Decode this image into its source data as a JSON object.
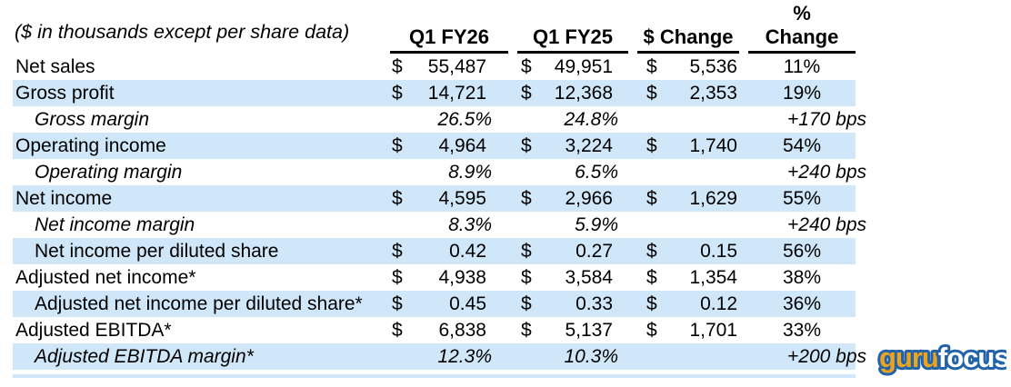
{
  "chart_data": {
    "type": "table",
    "note": "($ in thousands except per share data)",
    "columns": {
      "fy26": "Q1 FY26",
      "fy25": "Q1 FY25",
      "dchange": "$ Change",
      "pchange_line1": "%",
      "pchange_line2": "Change"
    },
    "rows": [
      {
        "label": "Net sales",
        "fy26_cur": "$",
        "fy26": "55,487",
        "fy25_cur": "$",
        "fy25": "49,951",
        "chg_cur": "$",
        "chg": "5,536",
        "pct": "11%"
      },
      {
        "label": "Gross profit",
        "fy26_cur": "$",
        "fy26": "14,721",
        "fy25_cur": "$",
        "fy25": "12,368",
        "chg_cur": "$",
        "chg": "2,353",
        "pct": "19%"
      },
      {
        "label": "Gross margin",
        "fy26": "26.5%",
        "fy25": "24.8%",
        "pct": "+170 bps"
      },
      {
        "label": "Operating income",
        "fy26_cur": "$",
        "fy26": "4,964",
        "fy25_cur": "$",
        "fy25": "3,224",
        "chg_cur": "$",
        "chg": "1,740",
        "pct": "54%"
      },
      {
        "label": "Operating margin",
        "fy26": "8.9%",
        "fy25": "6.5%",
        "pct": "+240 bps"
      },
      {
        "label": "Net income",
        "fy26_cur": "$",
        "fy26": "4,595",
        "fy25_cur": "$",
        "fy25": "2,966",
        "chg_cur": "$",
        "chg": "1,629",
        "pct": "55%"
      },
      {
        "label": "Net income margin",
        "fy26": "8.3%",
        "fy25": "5.9%",
        "pct": "+240 bps"
      },
      {
        "label": "Net income per diluted share",
        "fy26_cur": "$",
        "fy26": "0.42",
        "fy25_cur": "$",
        "fy25": "0.27",
        "chg_cur": "$",
        "chg": "0.15",
        "pct": "56%"
      },
      {
        "label": "Adjusted net income*",
        "fy26_cur": "$",
        "fy26": "4,938",
        "fy25_cur": "$",
        "fy25": "3,584",
        "chg_cur": "$",
        "chg": "1,354",
        "pct": "38%"
      },
      {
        "label": "Adjusted net income per diluted share*",
        "fy26_cur": "$",
        "fy26": "0.45",
        "fy25_cur": "$",
        "fy25": "0.33",
        "chg_cur": "$",
        "chg": "0.12",
        "pct": "36%"
      },
      {
        "label": "Adjusted EBITDA*",
        "fy26_cur": "$",
        "fy26": "6,838",
        "fy25_cur": "$",
        "fy25": "5,137",
        "chg_cur": "$",
        "chg": "1,701",
        "pct": "33%"
      },
      {
        "label": "Adjusted EBITDA margin*",
        "fy26": "12.3%",
        "fy25": "10.3%",
        "pct": "+200 bps"
      }
    ]
  },
  "colors": {
    "row_highlight": "#cfe7f8",
    "header_rule": "#000000",
    "logo_orange": "#eda41d",
    "logo_blue": "#2263aa",
    "logo_white": "#ffffff"
  },
  "logo": {
    "part1": "guru",
    "part2": "focus"
  }
}
